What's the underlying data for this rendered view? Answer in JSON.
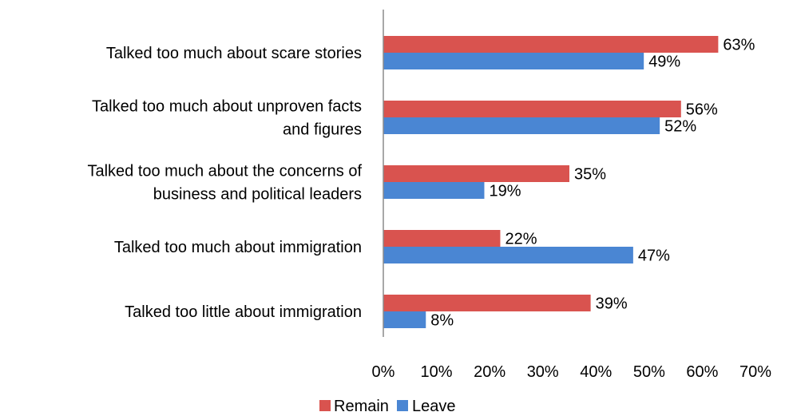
{
  "chart_data": {
    "type": "bar",
    "orientation": "horizontal",
    "title": "",
    "xlabel": "",
    "ylabel": "",
    "categories": [
      [
        "Talked too much about scare stories"
      ],
      [
        "Talked too much about unproven facts",
        "and figures"
      ],
      [
        "Talked too much about the concerns of",
        "business and political leaders"
      ],
      [
        "Talked too much about immigration"
      ],
      [
        "Talked too little about immigration"
      ]
    ],
    "series": [
      {
        "name": "Remain",
        "color": "#d9534f",
        "values": [
          63,
          56,
          35,
          22,
          39
        ],
        "labels": [
          "63%",
          "56%",
          "35%",
          "22%",
          "39%"
        ]
      },
      {
        "name": "Leave",
        "color": "#4a86d3",
        "values": [
          49,
          52,
          19,
          47,
          8
        ],
        "labels": [
          "49%",
          "52%",
          "19%",
          "47%",
          "8%"
        ]
      }
    ],
    "xlim": [
      0,
      70
    ],
    "x_ticks": [
      "0%",
      "10%",
      "20%",
      "30%",
      "40%",
      "50%",
      "60%",
      "70%"
    ],
    "grid": false,
    "legend_position": "bottom"
  }
}
